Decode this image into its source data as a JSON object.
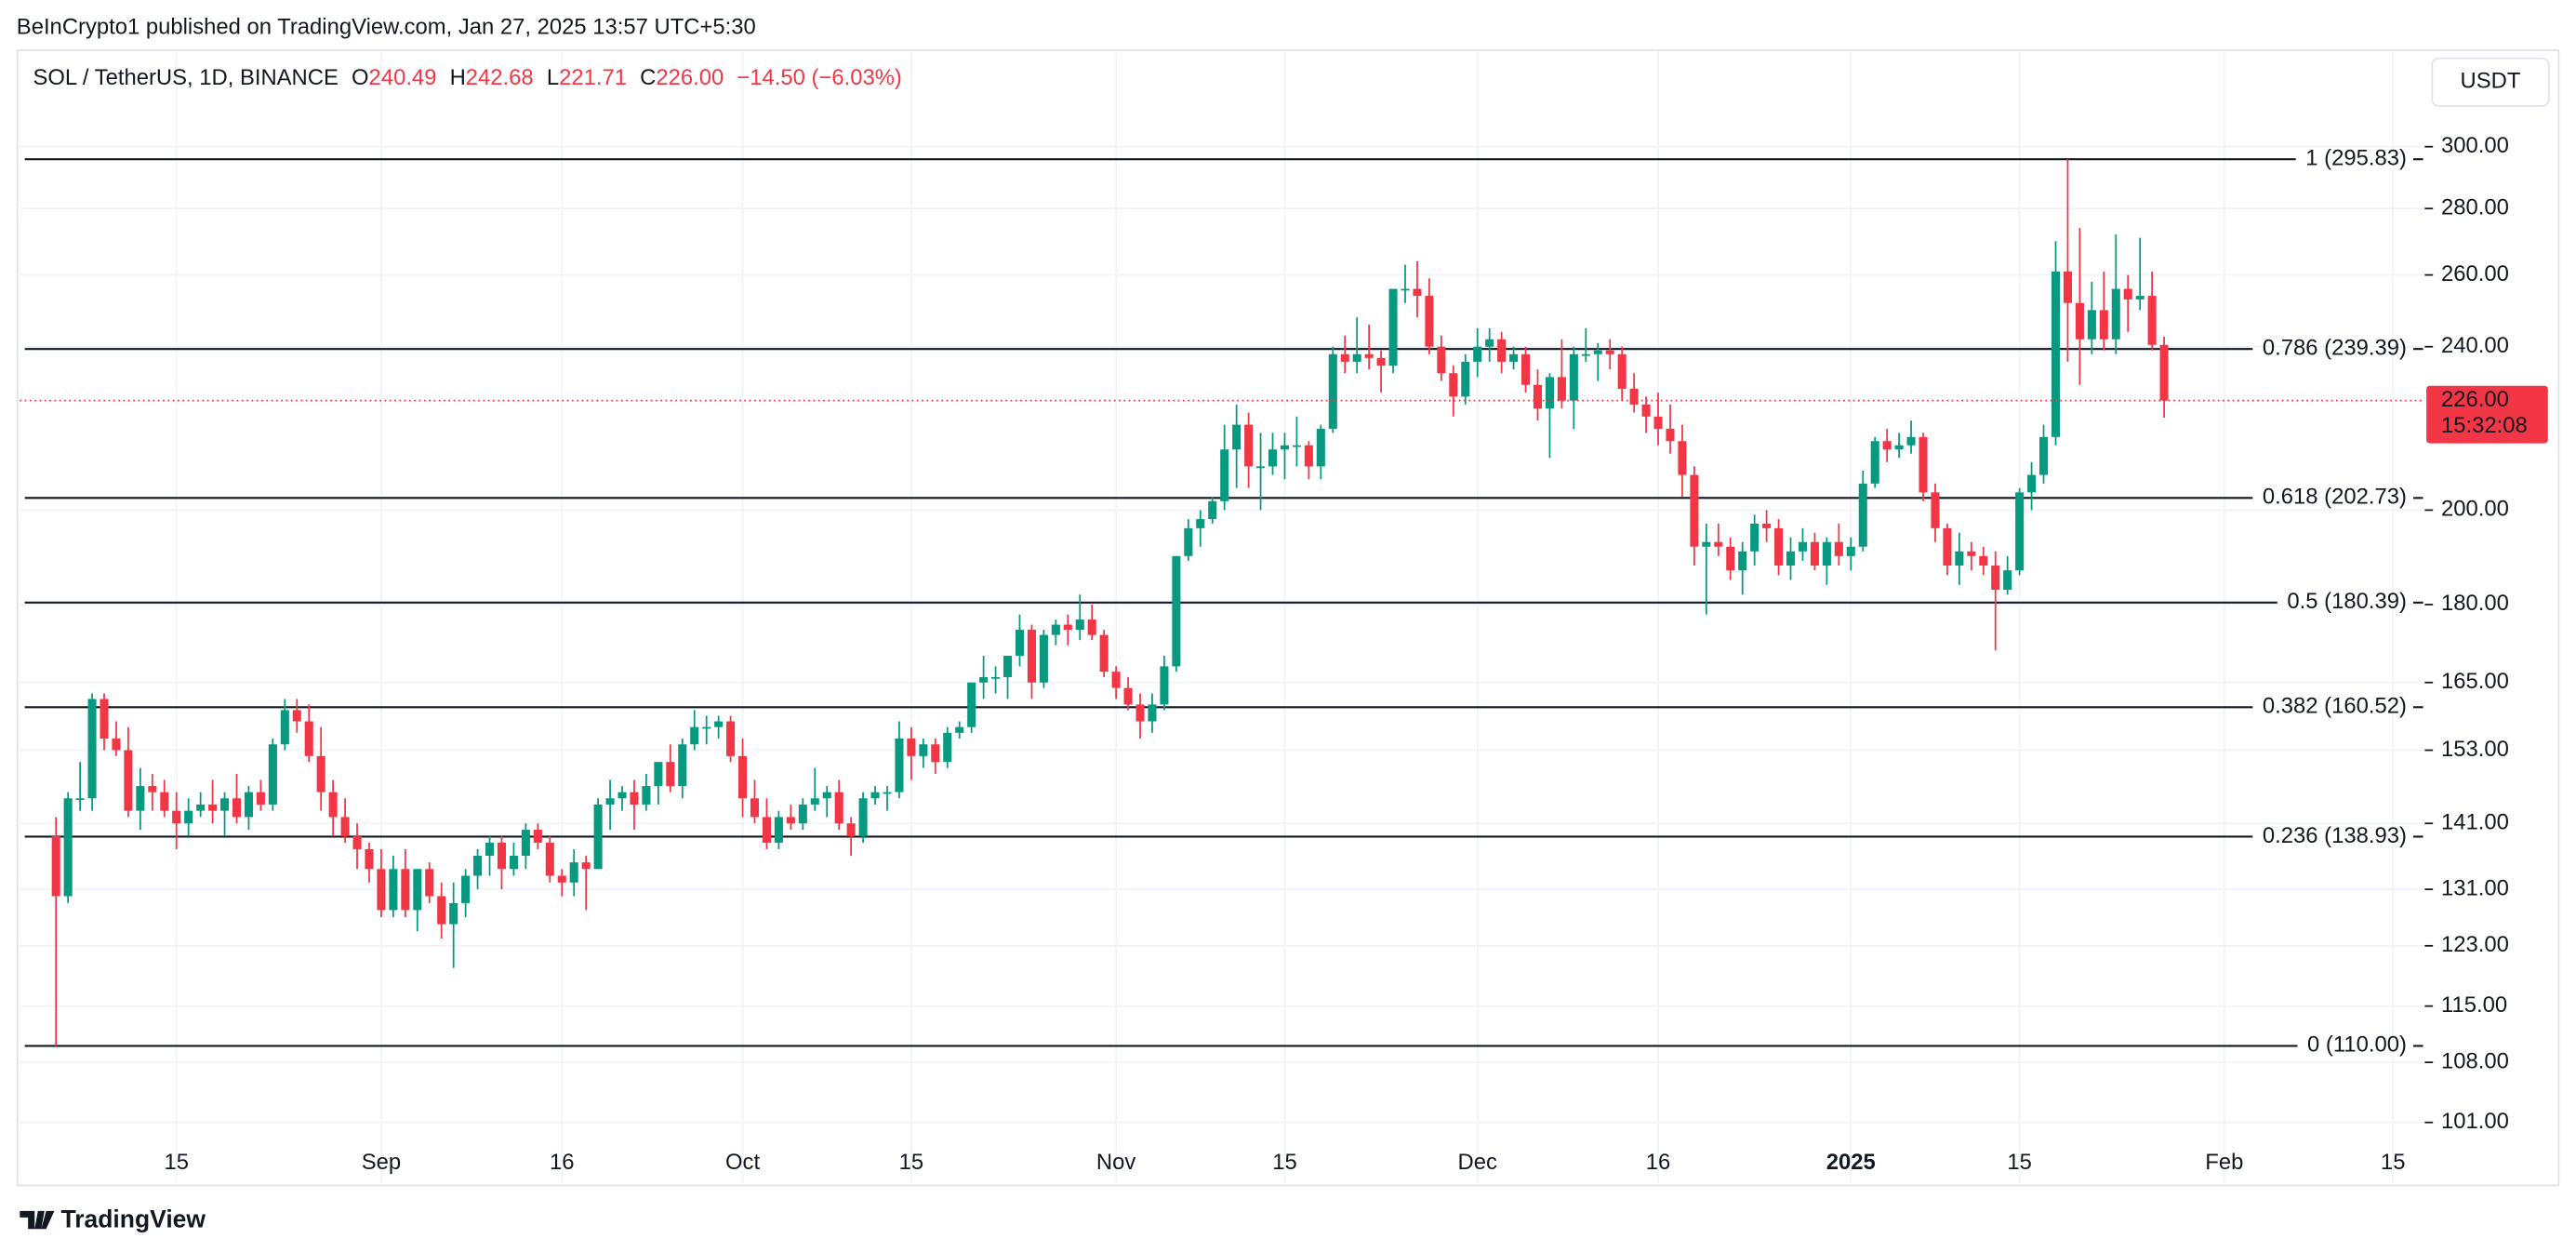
{
  "header": {
    "publisher": "BeInCrypto1 published on TradingView.com, Jan 27, 2025 13:57 UTC+5:30",
    "logo": "TradingView",
    "currency_button": "USDT"
  },
  "chart_data": {
    "type": "candlestick",
    "title": "SOL / TetherUS, 1D, BINANCE",
    "legend_items": [
      {
        "label": "O",
        "value": "240.49"
      },
      {
        "label": "H",
        "value": "242.68"
      },
      {
        "label": "L",
        "value": "221.71"
      },
      {
        "label": "C",
        "value": "226.00"
      }
    ],
    "change": "−14.50 (−6.03%)",
    "up_color": "#089981",
    "down_color": "#f23645",
    "grid": true,
    "ylog": true,
    "xlim": [
      -3,
      196.5
    ],
    "xticks": [
      {
        "value": 10,
        "label": "15"
      },
      {
        "value": 27,
        "label": "Sep"
      },
      {
        "value": 42,
        "label": "16"
      },
      {
        "value": 57,
        "label": "Oct"
      },
      {
        "value": 71,
        "label": "15"
      },
      {
        "value": 88,
        "label": "Nov"
      },
      {
        "value": 102,
        "label": "15"
      },
      {
        "value": 118,
        "label": "Dec"
      },
      {
        "value": 133,
        "label": "16"
      },
      {
        "value": 149,
        "label": "2025"
      },
      {
        "value": 163,
        "label": "15"
      },
      {
        "value": 180,
        "label": "Feb"
      },
      {
        "value": 194,
        "label": "15"
      }
    ],
    "ylim": [
      94.4,
      332
    ],
    "yticks": [
      {
        "value": 101,
        "label": "101.00"
      },
      {
        "value": 108,
        "label": "108.00"
      },
      {
        "value": 115,
        "label": "115.00"
      },
      {
        "value": 123,
        "label": "123.00"
      },
      {
        "value": 131,
        "label": "131.00"
      },
      {
        "value": 141,
        "label": "141.00"
      },
      {
        "value": 153,
        "label": "153.00"
      },
      {
        "value": 165,
        "label": "165.00"
      },
      {
        "value": 180,
        "label": "180.00"
      },
      {
        "value": 200,
        "label": "200.00"
      },
      {
        "value": 240,
        "label": "240.00"
      },
      {
        "value": 260,
        "label": "260.00"
      },
      {
        "value": 280,
        "label": "280.00"
      },
      {
        "value": 300,
        "label": "300.00"
      }
    ],
    "fib_levels": [
      {
        "value": 295.83,
        "label": "1 (295.83)"
      },
      {
        "value": 239.39,
        "label": "0.786 (239.39)"
      },
      {
        "value": 202.73,
        "label": "0.618 (202.73)"
      },
      {
        "value": 180.39,
        "label": "0.5 (180.39)"
      },
      {
        "value": 160.52,
        "label": "0.382 (160.52)"
      },
      {
        "value": 138.93,
        "label": "0.236 (138.93)"
      },
      {
        "value": 110,
        "label": "0 (110.00)"
      }
    ],
    "last_price": {
      "value": 226,
      "label": "226.00"
    },
    "countdown": "15:32:08",
    "x": [
      0,
      1,
      2,
      3,
      4,
      5,
      6,
      7,
      8,
      9,
      10,
      11,
      12,
      13,
      14,
      15,
      16,
      17,
      18,
      19,
      20,
      21,
      22,
      23,
      24,
      25,
      26,
      27,
      28,
      29,
      30,
      31,
      32,
      33,
      34,
      35,
      36,
      37,
      38,
      39,
      40,
      41,
      42,
      43,
      44,
      45,
      46,
      47,
      48,
      49,
      50,
      51,
      52,
      53,
      54,
      55,
      56,
      57,
      58,
      59,
      60,
      61,
      62,
      63,
      64,
      65,
      66,
      67,
      68,
      69,
      70,
      71,
      72,
      73,
      74,
      75,
      76,
      77,
      78,
      79,
      80,
      81,
      82,
      83,
      84,
      85,
      86,
      87,
      88,
      89,
      90,
      91,
      92,
      93,
      94,
      95,
      96,
      97,
      98,
      99,
      100,
      101,
      102,
      103,
      104,
      105,
      106,
      107,
      108,
      109,
      110,
      111,
      112,
      113,
      114,
      115,
      116,
      117,
      118,
      119,
      120,
      121,
      122,
      123,
      124,
      125,
      126,
      127,
      128,
      129,
      130,
      131,
      132,
      133,
      134,
      135,
      136,
      137,
      138,
      139,
      140,
      141,
      142,
      143,
      144,
      145,
      146,
      147,
      148,
      149,
      150,
      151,
      152,
      153,
      154,
      155,
      156,
      157,
      158,
      159,
      160,
      161,
      162,
      163,
      164,
      165,
      166,
      167,
      168,
      169,
      170,
      171,
      172,
      173,
      174,
      175
    ],
    "candles": [
      [
        139,
        142,
        110,
        130
      ],
      [
        130,
        146,
        129,
        145
      ],
      [
        145,
        151,
        143,
        145
      ],
      [
        145,
        163,
        143,
        162
      ],
      [
        162,
        163,
        153,
        155
      ],
      [
        155,
        158,
        152,
        153
      ],
      [
        153,
        157,
        142,
        143
      ],
      [
        143,
        150,
        140,
        147
      ],
      [
        147,
        149,
        143,
        146
      ],
      [
        146,
        148,
        142,
        143
      ],
      [
        143,
        146,
        137,
        141
      ],
      [
        141,
        145,
        139,
        143
      ],
      [
        143,
        146,
        142,
        144
      ],
      [
        144,
        148,
        141,
        143
      ],
      [
        143,
        146,
        139,
        145
      ],
      [
        145,
        149,
        141,
        142
      ],
      [
        142,
        147,
        140,
        146
      ],
      [
        146,
        148,
        143,
        144
      ],
      [
        144,
        155,
        143,
        154
      ],
      [
        154,
        162,
        153,
        160
      ],
      [
        160,
        162,
        156,
        158
      ],
      [
        158,
        161,
        151,
        152
      ],
      [
        152,
        157,
        143,
        146
      ],
      [
        146,
        148,
        139,
        142
      ],
      [
        142,
        145,
        138,
        139
      ],
      [
        139,
        141,
        134,
        137
      ],
      [
        137,
        138,
        132,
        134
      ],
      [
        134,
        137,
        127,
        128
      ],
      [
        128,
        136,
        127,
        134
      ],
      [
        134,
        137,
        127,
        128
      ],
      [
        128,
        134,
        125,
        134
      ],
      [
        134,
        135,
        129,
        130
      ],
      [
        130,
        132,
        124,
        126
      ],
      [
        126,
        132,
        120,
        129
      ],
      [
        129,
        134,
        127,
        133
      ],
      [
        133,
        137,
        131,
        136
      ],
      [
        136,
        139,
        133,
        138
      ],
      [
        138,
        139,
        131,
        134
      ],
      [
        134,
        138,
        133,
        136
      ],
      [
        136,
        141,
        134,
        140
      ],
      [
        140,
        141,
        137,
        138
      ],
      [
        138,
        139,
        132,
        133
      ],
      [
        133,
        134,
        130,
        132
      ],
      [
        132,
        137,
        130,
        135
      ],
      [
        135,
        136,
        128,
        134
      ],
      [
        134,
        145,
        134,
        144
      ],
      [
        144,
        148,
        140,
        145
      ],
      [
        145,
        147,
        143,
        146
      ],
      [
        146,
        148,
        140,
        144
      ],
      [
        144,
        149,
        143,
        147
      ],
      [
        147,
        151,
        144,
        151
      ],
      [
        151,
        154,
        146,
        147
      ],
      [
        147,
        155,
        145,
        154
      ],
      [
        154,
        160,
        153,
        157
      ],
      [
        157,
        159,
        154,
        157
      ],
      [
        157,
        159,
        155,
        158
      ],
      [
        158,
        159,
        151,
        152
      ],
      [
        152,
        155,
        142,
        145
      ],
      [
        145,
        148,
        141,
        142
      ],
      [
        142,
        145,
        137,
        138
      ],
      [
        138,
        143,
        137,
        142
      ],
      [
        142,
        144,
        140,
        141
      ],
      [
        141,
        145,
        140,
        144
      ],
      [
        144,
        150,
        143,
        145
      ],
      [
        145,
        147,
        142,
        146
      ],
      [
        146,
        148,
        140,
        141
      ],
      [
        141,
        142,
        136,
        139
      ],
      [
        139,
        146,
        138,
        145
      ],
      [
        145,
        147,
        144,
        146
      ],
      [
        146,
        147,
        143,
        146
      ],
      [
        146,
        158,
        145,
        155
      ],
      [
        155,
        157,
        148,
        152
      ],
      [
        152,
        155,
        150,
        154
      ],
      [
        154,
        155,
        149,
        151
      ],
      [
        151,
        157,
        150,
        156
      ],
      [
        156,
        158,
        155,
        157
      ],
      [
        157,
        165,
        156,
        165
      ],
      [
        165,
        170,
        162,
        166
      ],
      [
        166,
        168,
        163,
        166
      ],
      [
        166,
        170,
        162,
        170
      ],
      [
        170,
        178,
        168,
        175
      ],
      [
        175,
        176,
        162,
        165
      ],
      [
        165,
        175,
        164,
        174
      ],
      [
        174,
        177,
        172,
        176
      ],
      [
        176,
        178,
        172,
        175
      ],
      [
        175,
        182,
        173,
        177
      ],
      [
        177,
        180,
        173,
        174
      ],
      [
        174,
        175,
        166,
        167
      ],
      [
        167,
        168,
        162,
        164
      ],
      [
        164,
        166,
        160,
        161
      ],
      [
        161,
        163,
        155,
        158
      ],
      [
        158,
        163,
        156,
        161
      ],
      [
        161,
        170,
        160,
        168
      ],
      [
        168,
        190,
        167,
        190
      ],
      [
        190,
        198,
        189,
        196
      ],
      [
        196,
        200,
        192,
        198
      ],
      [
        198,
        203,
        197,
        202
      ],
      [
        202,
        220,
        200,
        214
      ],
      [
        214,
        225,
        205,
        220
      ],
      [
        220,
        223,
        205,
        210
      ],
      [
        210,
        218,
        200,
        210
      ],
      [
        210,
        218,
        208,
        214
      ],
      [
        214,
        218,
        207,
        215
      ],
      [
        215,
        222,
        210,
        215
      ],
      [
        215,
        216,
        207,
        210
      ],
      [
        210,
        220,
        207,
        219
      ],
      [
        219,
        240,
        218,
        238
      ],
      [
        238,
        243,
        233,
        236
      ],
      [
        236,
        248,
        233,
        238
      ],
      [
        238,
        246,
        234,
        237
      ],
      [
        237,
        239,
        228,
        235
      ],
      [
        235,
        256,
        233,
        256
      ],
      [
        256,
        263,
        252,
        256
      ],
      [
        256,
        264,
        248,
        254
      ],
      [
        254,
        259,
        238,
        240
      ],
      [
        240,
        243,
        231,
        233
      ],
      [
        233,
        235,
        222,
        227
      ],
      [
        227,
        238,
        225,
        236
      ],
      [
        236,
        245,
        232,
        240
      ],
      [
        240,
        245,
        236,
        242
      ],
      [
        242,
        244,
        233,
        236
      ],
      [
        236,
        240,
        234,
        238
      ],
      [
        238,
        240,
        228,
        230
      ],
      [
        230,
        234,
        221,
        224
      ],
      [
        224,
        233,
        212,
        232
      ],
      [
        232,
        242,
        224,
        226
      ],
      [
        226,
        240,
        219,
        238
      ],
      [
        238,
        245,
        236,
        238
      ],
      [
        238,
        241,
        231,
        239
      ],
      [
        239,
        242,
        234,
        238
      ],
      [
        238,
        240,
        226,
        229
      ],
      [
        229,
        233,
        223,
        225
      ],
      [
        225,
        227,
        218,
        222
      ],
      [
        222,
        228,
        215,
        219
      ],
      [
        219,
        225,
        213,
        216
      ],
      [
        216,
        220,
        203,
        208
      ],
      [
        208,
        210,
        188,
        192
      ],
      [
        192,
        197,
        178,
        193
      ],
      [
        193,
        197,
        190,
        192
      ],
      [
        192,
        194,
        185,
        187
      ],
      [
        187,
        193,
        182,
        191
      ],
      [
        191,
        199,
        188,
        197
      ],
      [
        197,
        200,
        193,
        196
      ],
      [
        196,
        198,
        186,
        188
      ],
      [
        188,
        194,
        185,
        191
      ],
      [
        191,
        196,
        189,
        193
      ],
      [
        193,
        195,
        187,
        188
      ],
      [
        188,
        194,
        184,
        193
      ],
      [
        193,
        197,
        188,
        190
      ],
      [
        190,
        194,
        187,
        192
      ],
      [
        192,
        209,
        191,
        206
      ],
      [
        206,
        217,
        205,
        216
      ],
      [
        216,
        219,
        211,
        214
      ],
      [
        214,
        218,
        212,
        215
      ],
      [
        215,
        221,
        213,
        217
      ],
      [
        217,
        218,
        202,
        204
      ],
      [
        204,
        206,
        193,
        196
      ],
      [
        196,
        197,
        186,
        188
      ],
      [
        188,
        195,
        184,
        191
      ],
      [
        191,
        193,
        187,
        190
      ],
      [
        190,
        192,
        186,
        188
      ],
      [
        188,
        191,
        171,
        183
      ],
      [
        183,
        190,
        182,
        187
      ],
      [
        187,
        205,
        186,
        204
      ],
      [
        204,
        211,
        200,
        208
      ],
      [
        208,
        220,
        206,
        217
      ],
      [
        217,
        270,
        215,
        261
      ],
      [
        261,
        295.83,
        236,
        252
      ],
      [
        252,
        274,
        230,
        242
      ],
      [
        242,
        258,
        238,
        250
      ],
      [
        250,
        261,
        239,
        242
      ],
      [
        242,
        272,
        238,
        256
      ],
      [
        256,
        260,
        244,
        253
      ],
      [
        253,
        271,
        250,
        254
      ],
      [
        254,
        261,
        239,
        240.49
      ],
      [
        240.49,
        242.68,
        221.71,
        226.0
      ]
    ]
  }
}
